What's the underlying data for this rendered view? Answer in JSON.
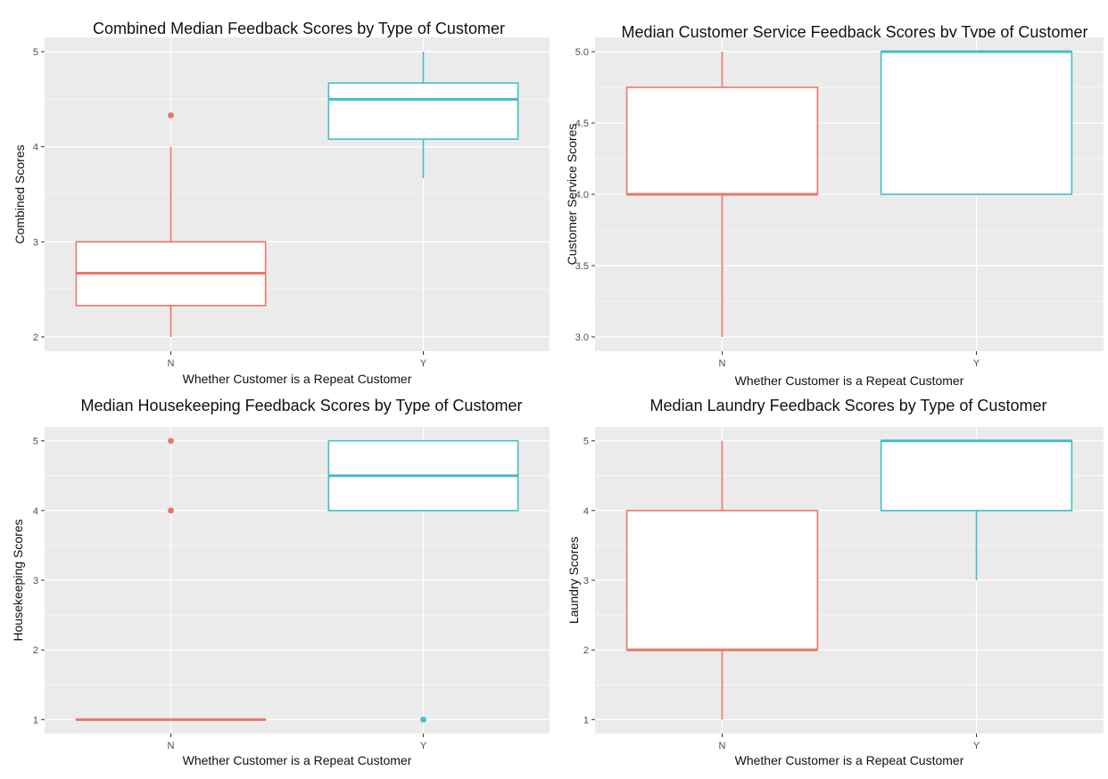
{
  "colors": {
    "N": "#e8786a",
    "Y": "#45bec6",
    "panel_bg": "#ebebeb",
    "grid": "#ffffff",
    "tick": "#4d4d4d"
  },
  "chart_data": [
    {
      "type": "box",
      "title": "Combined Median Feedback Scores by Type of Customer",
      "xlabel": "Whether Customer is a Repeat Customer",
      "ylabel": "Combined Scores",
      "categories": [
        "N",
        "Y"
      ],
      "ylim": [
        1.85,
        5.15
      ],
      "yticks": [
        2,
        3,
        4,
        5
      ],
      "grid": true,
      "boxes": [
        {
          "category": "N",
          "min": 2.0,
          "q1": 2.33,
          "median": 2.67,
          "q3": 3.0,
          "max": 4.0,
          "outliers": [
            4.33
          ]
        },
        {
          "category": "Y",
          "min": 3.67,
          "q1": 4.08,
          "median": 4.5,
          "q3": 4.67,
          "max": 5.0,
          "outliers": []
        }
      ]
    },
    {
      "type": "box",
      "title": "Median Customer Service Feedback Scores by Type of Customer",
      "xlabel": "Whether Customer is a Repeat Customer",
      "ylabel": "Customer Service Scores",
      "categories": [
        "N",
        "Y"
      ],
      "ylim": [
        2.9,
        5.1
      ],
      "yticks": [
        "3.0",
        "3.5",
        "4.0",
        "4.5",
        "5.0"
      ],
      "grid": true,
      "boxes": [
        {
          "category": "N",
          "min": 3.0,
          "q1": 4.0,
          "median": 4.0,
          "q3": 4.75,
          "max": 5.0,
          "outliers": []
        },
        {
          "category": "Y",
          "min": 4.0,
          "q1": 4.0,
          "median": 5.0,
          "q3": 5.0,
          "max": 5.0,
          "outliers": []
        }
      ]
    },
    {
      "type": "box",
      "title": "Median Housekeeping Feedback Scores by Type of Customer",
      "xlabel": "Whether Customer is a Repeat Customer",
      "ylabel": "Housekeeping Scores",
      "categories": [
        "N",
        "Y"
      ],
      "ylim": [
        0.8,
        5.2
      ],
      "yticks": [
        1,
        2,
        3,
        4,
        5
      ],
      "grid": true,
      "boxes": [
        {
          "category": "N",
          "min": 1.0,
          "q1": 1.0,
          "median": 1.0,
          "q3": 1.0,
          "max": 1.0,
          "outliers": [
            4.0,
            5.0
          ]
        },
        {
          "category": "Y",
          "min": 4.0,
          "q1": 4.0,
          "median": 4.5,
          "q3": 5.0,
          "max": 5.0,
          "outliers": [
            1.0
          ]
        }
      ]
    },
    {
      "type": "box",
      "title": "Median Laundry Feedback Scores by Type of Customer",
      "xlabel": "Whether Customer is a Repeat Customer",
      "ylabel": "Laundry Scores",
      "categories": [
        "N",
        "Y"
      ],
      "ylim": [
        0.8,
        5.2
      ],
      "yticks": [
        1,
        2,
        3,
        4,
        5
      ],
      "grid": true,
      "boxes": [
        {
          "category": "N",
          "min": 1.0,
          "q1": 2.0,
          "median": 2.0,
          "q3": 4.0,
          "max": 5.0,
          "outliers": []
        },
        {
          "category": "Y",
          "min": 3.0,
          "q1": 4.0,
          "median": 5.0,
          "q3": 5.0,
          "max": 5.0,
          "outliers": []
        }
      ]
    }
  ]
}
